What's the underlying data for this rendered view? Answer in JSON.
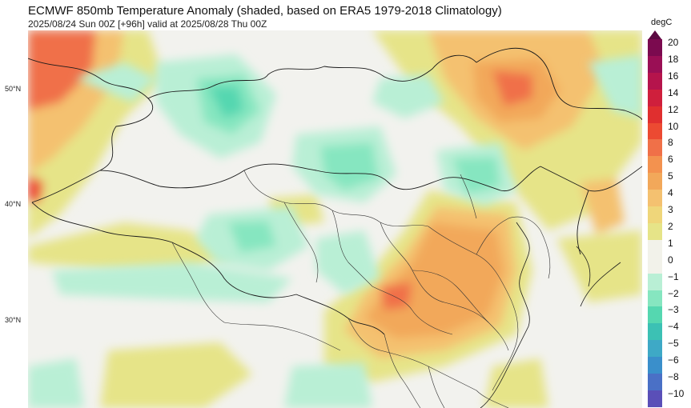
{
  "title": "ECMWF 850mb Temperature Anomaly (shaded, based on ERA5 1979-2018 Climatology)",
  "subtitle": "2025/08/24 Sun 00Z [+96h] valid at 2025/08/28 Thu 00Z",
  "latitude_labels": [
    "50°N",
    "40°N",
    "30°N"
  ],
  "colorbar": {
    "unit": "degC",
    "levels": [
      "20",
      "18",
      "16",
      "14",
      "12",
      "10",
      "8",
      "6",
      "5",
      "4",
      "3",
      "2",
      "1",
      "0",
      "−1",
      "−2",
      "−3",
      "−4",
      "−5",
      "−6",
      "−8",
      "−10"
    ],
    "colors": [
      "#7b0a4f",
      "#9a0f55",
      "#b5144c",
      "#cf1f3c",
      "#e02f2f",
      "#ec4a32",
      "#f07048",
      "#f3924f",
      "#f2a85a",
      "#f4c170",
      "#efd67a",
      "#e6e488",
      "#f2f2ea",
      "#f2f2ea",
      "#b9efd5",
      "#86e6c0",
      "#55d7b0",
      "#3cc1b4",
      "#3ea9c6",
      "#3a8fcb",
      "#4a70c6",
      "#5a4fb8"
    ],
    "top_arrow_color": "#5c0a42"
  }
}
